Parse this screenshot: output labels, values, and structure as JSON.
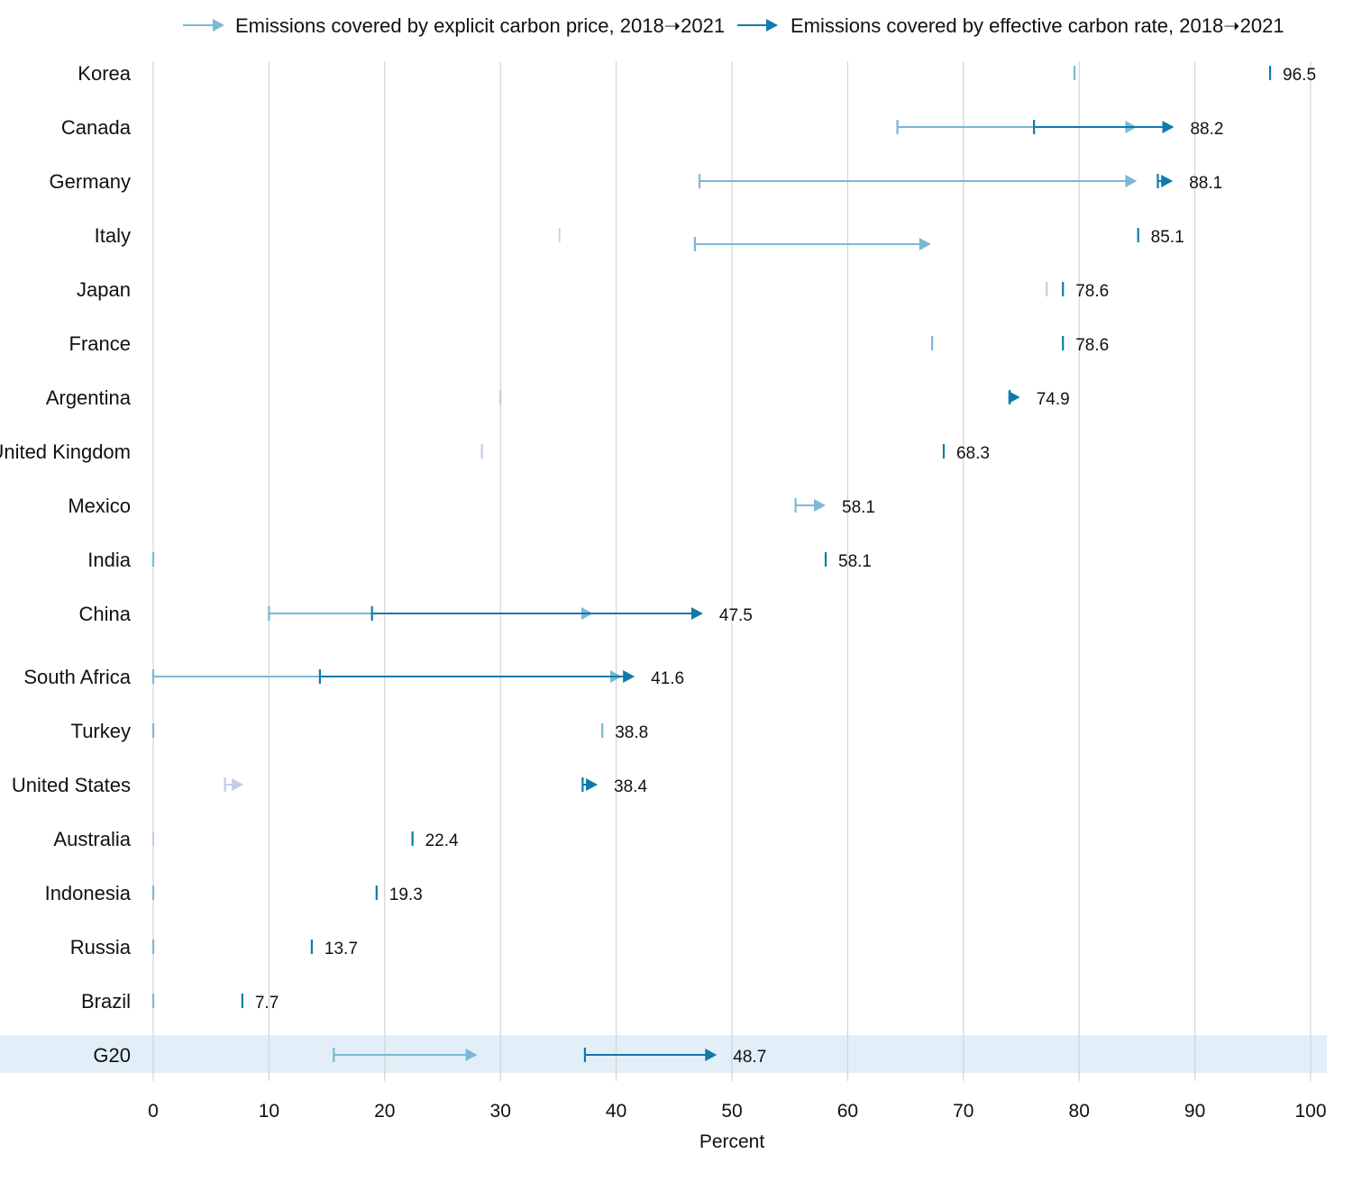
{
  "chart_data": {
    "type": "dumbbell-arrow",
    "xlabel": "Percent",
    "xlim": [
      0,
      100
    ],
    "xticks": [
      0,
      10,
      20,
      30,
      40,
      50,
      60,
      70,
      80,
      90,
      100
    ],
    "grid": true,
    "legend_placement": "top",
    "legend": [
      {
        "label": "Emissions covered by explicit carbon price, 2018➝2021",
        "color": "#7ab8d6"
      },
      {
        "label": "Emissions covered by effective carbon rate, 2018➝2021",
        "color": "#0f7aab"
      }
    ],
    "colors": {
      "explicit": "#7ab8d6",
      "effective": "#0f7aab",
      "pale": "#c3cde6",
      "highlight_band": "#e2eff8"
    },
    "rows": [
      {
        "country": "Korea",
        "explicit": [
          79.6,
          79.6
        ],
        "effective": [
          96.5,
          96.5
        ],
        "label": "96.5"
      },
      {
        "country": "Canada",
        "explicit": [
          64.3,
          85.0
        ],
        "effective": [
          76.1,
          88.2
        ],
        "label": "88.2"
      },
      {
        "country": "Germany",
        "explicit": [
          47.2,
          85.0
        ],
        "effective": [
          86.8,
          88.1
        ],
        "label": "88.1"
      },
      {
        "country": "Italy",
        "explicit": [
          46.8,
          67.2
        ],
        "explicit_other": [
          35.1,
          35.1
        ],
        "effective": [
          85.1,
          85.1
        ],
        "label": "85.1"
      },
      {
        "country": "Japan",
        "explicit": [
          77.2,
          77.2
        ],
        "explicit_pale": true,
        "effective": [
          78.6,
          78.6
        ],
        "label": "78.6"
      },
      {
        "country": "France",
        "explicit": [
          67.3,
          67.3
        ],
        "effective": [
          78.6,
          78.6
        ],
        "label": "78.6"
      },
      {
        "country": "Argentina",
        "explicit": [
          30.0,
          30.0
        ],
        "explicit_pale": true,
        "effective": [
          74.0,
          74.9
        ],
        "label": "74.9"
      },
      {
        "country": "United Kingdom",
        "explicit": [
          28.4,
          28.4
        ],
        "explicit_pale": true,
        "effective": [
          68.3,
          68.3
        ],
        "label": "68.3"
      },
      {
        "country": "Mexico",
        "explicit": [
          55.5,
          58.1
        ],
        "effective": null,
        "label": "58.1"
      },
      {
        "country": "India",
        "explicit": [
          0,
          0
        ],
        "effective": [
          58.1,
          58.1
        ],
        "label": "58.1"
      },
      {
        "country": "China",
        "explicit": [
          10.0,
          38.0
        ],
        "effective": [
          18.9,
          47.5
        ],
        "label": "47.5"
      },
      {
        "country": "South Africa",
        "explicit": [
          0,
          40.5
        ],
        "effective": [
          14.4,
          41.6
        ],
        "label": "41.6"
      },
      {
        "country": "Turkey",
        "explicit": [
          0,
          0
        ],
        "effective": [
          38.8,
          38.8
        ],
        "effective_light": true,
        "label": "38.8"
      },
      {
        "country": "United States",
        "explicit": [
          6.2,
          7.8
        ],
        "explicit_pale": true,
        "effective": [
          37.1,
          38.4
        ],
        "label": "38.4"
      },
      {
        "country": "Australia",
        "explicit": [
          0,
          0
        ],
        "explicit_pale": true,
        "effective": [
          22.4,
          22.4
        ],
        "label": "22.4"
      },
      {
        "country": "Indonesia",
        "explicit": [
          0,
          0
        ],
        "effective": [
          19.3,
          19.3
        ],
        "label": "19.3"
      },
      {
        "country": "Russia",
        "explicit": [
          0,
          0
        ],
        "effective": [
          13.7,
          13.7
        ],
        "label": "13.7"
      },
      {
        "country": "Brazil",
        "explicit": [
          0,
          0
        ],
        "effective": [
          7.7,
          7.7
        ],
        "label": "7.7"
      },
      {
        "country": "G20",
        "explicit": [
          15.6,
          28.0
        ],
        "effective": [
          37.3,
          48.7
        ],
        "label": "48.7",
        "highlight": true
      }
    ]
  }
}
